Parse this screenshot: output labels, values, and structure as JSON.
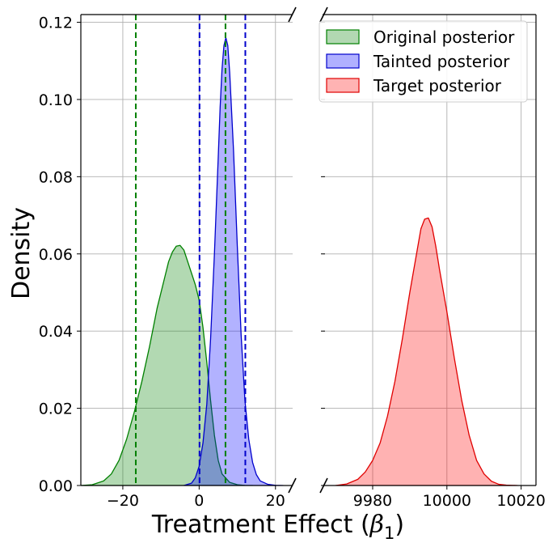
{
  "chart_data": {
    "type": "area",
    "ylabel": "Density",
    "xlabel_main": "Treatment Effect (",
    "xlabel_beta": "β",
    "xlabel_sub": "1",
    "xlabel_close": ")",
    "ylim": [
      0,
      0.122
    ],
    "yticks": [
      0.0,
      0.02,
      0.04,
      0.06,
      0.08,
      0.1,
      0.12
    ],
    "ytick_labels": [
      "0.00",
      "0.02",
      "0.04",
      "0.06",
      "0.08",
      "0.10",
      "0.12"
    ],
    "grid": true,
    "legend_position": "top-right",
    "legend": [
      {
        "label": "Original posterior",
        "fill": "#b2d8b2",
        "stroke": "#008000"
      },
      {
        "label": "Tainted posterior",
        "fill": "#b0b0ff",
        "stroke": "#0000cc"
      },
      {
        "label": "Target posterior",
        "fill": "#ffb3b3",
        "stroke": "#e00000"
      }
    ],
    "panels": [
      {
        "name": "left",
        "xlim": [
          -31,
          24.5
        ],
        "xticks": [
          -20,
          0,
          20
        ],
        "xtick_labels": [
          "−20",
          "0",
          "20"
        ],
        "series": [
          {
            "name": "Original posterior",
            "fill": "#008000",
            "fill_opacity": 0.3,
            "stroke": "#008000",
            "x": [
              -31,
              -28,
              -25,
              -23,
              -21,
              -19,
              -17,
              -15,
              -13,
              -11,
              -9,
              -8,
              -7,
              -6,
              -5,
              -4,
              -3,
              -2,
              -1,
              0,
              1,
              2,
              3,
              4,
              5,
              6,
              8,
              10,
              12,
              14
            ],
            "y": [
              0,
              0.0002,
              0.0012,
              0.003,
              0.0065,
              0.012,
              0.019,
              0.027,
              0.036,
              0.046,
              0.054,
              0.058,
              0.0605,
              0.062,
              0.0622,
              0.061,
              0.058,
              0.055,
              0.052,
              0.048,
              0.041,
              0.032,
              0.022,
              0.013,
              0.0065,
              0.003,
              0.0008,
              0.0002,
              3e-05,
              0
            ]
          },
          {
            "name": "Tainted posterior",
            "fill": "#0000ff",
            "fill_opacity": 0.3,
            "stroke": "#0000cc",
            "x": [
              -4,
              -2,
              -1,
              0,
              1,
              2,
              3,
              4,
              5,
              5.5,
              6,
              6.5,
              7,
              7.5,
              8,
              9,
              10,
              11,
              12,
              13,
              14,
              15,
              16,
              18,
              20,
              22
            ],
            "y": [
              0,
              0.0006,
              0.002,
              0.005,
              0.011,
              0.021,
              0.038,
              0.06,
              0.085,
              0.098,
              0.108,
              0.114,
              0.116,
              0.114,
              0.107,
              0.087,
              0.062,
              0.039,
              0.022,
              0.012,
              0.006,
              0.0028,
              0.0012,
              0.0003,
              5e-05,
              0
            ]
          }
        ],
        "vlines": [
          {
            "x": -16.6,
            "color": "#008000",
            "style": "dashed"
          },
          {
            "x": 6.9,
            "color": "#008000",
            "style": "dashed"
          },
          {
            "x": 0.1,
            "color": "#0000cc",
            "style": "dashed"
          },
          {
            "x": 12.1,
            "color": "#0000cc",
            "style": "dashed"
          }
        ]
      },
      {
        "name": "right",
        "xlim": [
          9966.5,
          10024
        ],
        "xticks": [
          9980,
          10000,
          10020
        ],
        "xtick_labels": [
          "9980",
          "10000",
          "10020"
        ],
        "series": [
          {
            "name": "Target posterior",
            "fill": "#ff0000",
            "fill_opacity": 0.3,
            "stroke": "#e00000",
            "x": [
              9970,
              9973,
              9976,
              9978,
              9980,
              9982,
              9984,
              9986,
              9988,
              9990,
              9992,
              9993,
              9994,
              9995,
              9996,
              9997,
              9998,
              10000,
              10002,
              10004,
              10006,
              10008,
              10010,
              10012,
              10014,
              10016,
              10019
            ],
            "y": [
              0,
              0.0004,
              0.0016,
              0.0035,
              0.0065,
              0.011,
              0.018,
              0.027,
              0.038,
              0.05,
              0.061,
              0.0665,
              0.069,
              0.0693,
              0.067,
              0.062,
              0.056,
              0.045,
              0.033,
              0.022,
              0.013,
              0.0065,
              0.003,
              0.0011,
              0.0003,
              0.0001,
              0
            ]
          }
        ],
        "vlines": []
      }
    ]
  }
}
